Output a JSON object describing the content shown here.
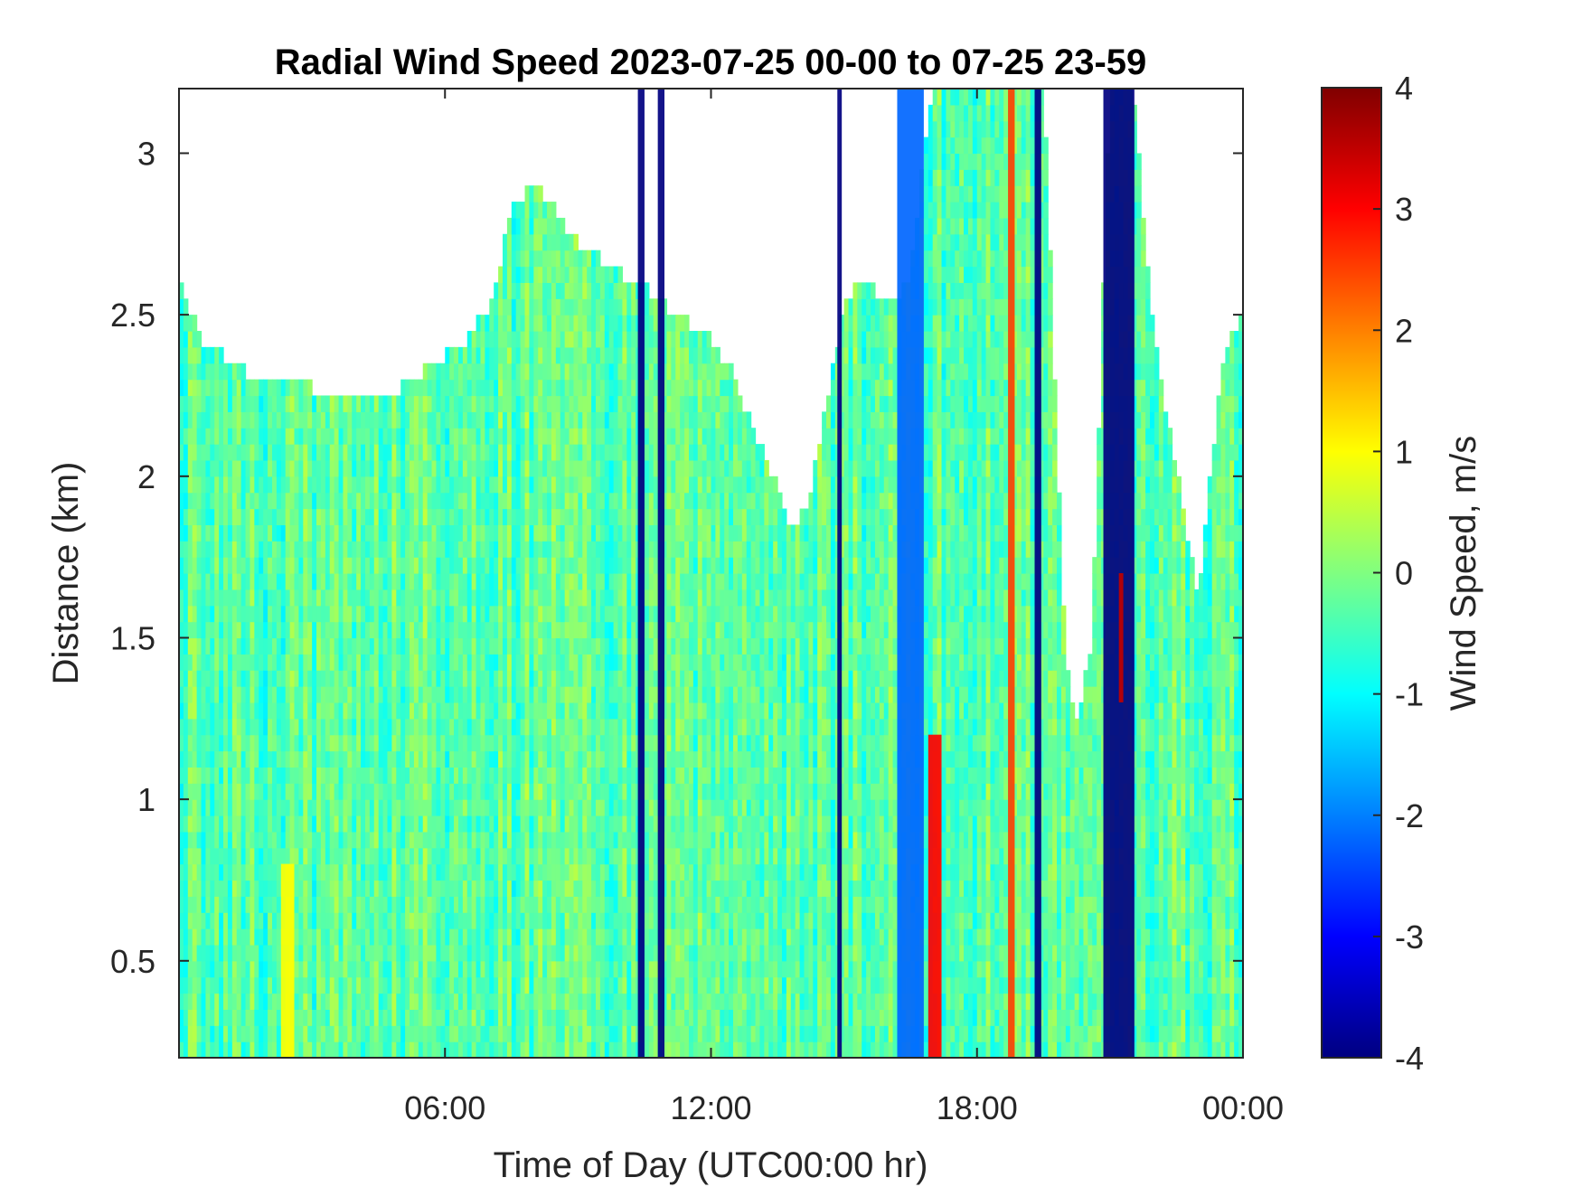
{
  "chart_data": {
    "type": "heatmap",
    "title": "Radial Wind Speed 2023-07-25 00-00 to 07-25 23-59",
    "xlabel": "Time of Day (UTC00:00 hr)",
    "ylabel": "Distance (km)",
    "colorbar_label": "Wind Speed, m/s",
    "colormap": "jet",
    "xlim_hours": [
      0,
      24
    ],
    "ylim": [
      0.2,
      3.2
    ],
    "clim": [
      -4,
      4
    ],
    "x_ticks": [
      {
        "hour": 6,
        "label": "06:00"
      },
      {
        "hour": 12,
        "label": "12:00"
      },
      {
        "hour": 18,
        "label": "18:00"
      },
      {
        "hour": 24,
        "label": "00:00"
      }
    ],
    "y_ticks": [
      {
        "value": 0.5,
        "label": "0.5"
      },
      {
        "value": 1,
        "label": "1"
      },
      {
        "value": 1.5,
        "label": "1.5"
      },
      {
        "value": 2,
        "label": "2"
      },
      {
        "value": 2.5,
        "label": "2.5"
      },
      {
        "value": 3,
        "label": "3"
      }
    ],
    "colorbar_ticks": [
      {
        "value": -4,
        "label": "-4"
      },
      {
        "value": -3,
        "label": "-3"
      },
      {
        "value": -2,
        "label": "-2"
      },
      {
        "value": -1,
        "label": "-1"
      },
      {
        "value": 0,
        "label": "0"
      },
      {
        "value": 1,
        "label": "1"
      },
      {
        "value": 2,
        "label": "2"
      },
      {
        "value": 3,
        "label": "3"
      },
      {
        "value": 4,
        "label": "4"
      }
    ],
    "data_top_km": [
      [
        0.0,
        2.6
      ],
      [
        0.5,
        2.4
      ],
      [
        1.0,
        2.35
      ],
      [
        1.5,
        2.3
      ],
      [
        2.0,
        2.25
      ],
      [
        2.5,
        2.3
      ],
      [
        3.0,
        2.25
      ],
      [
        3.5,
        2.2
      ],
      [
        4.0,
        2.25
      ],
      [
        4.5,
        2.2
      ],
      [
        5.0,
        2.25
      ],
      [
        5.5,
        2.3
      ],
      [
        6.0,
        2.35
      ],
      [
        6.5,
        2.4
      ],
      [
        7.0,
        2.5
      ],
      [
        7.5,
        2.8
      ],
      [
        8.0,
        2.9
      ],
      [
        8.5,
        2.8
      ],
      [
        9.0,
        2.7
      ],
      [
        9.5,
        2.65
      ],
      [
        10.0,
        2.6
      ],
      [
        10.3,
        2.6
      ],
      [
        11.0,
        2.5
      ],
      [
        11.5,
        2.45
      ],
      [
        12.0,
        2.4
      ],
      [
        12.5,
        2.3
      ],
      [
        13.0,
        2.1
      ],
      [
        13.5,
        1.95
      ],
      [
        13.8,
        1.8
      ],
      [
        14.2,
        1.9
      ],
      [
        14.6,
        2.2
      ],
      [
        15.0,
        2.5
      ],
      [
        15.5,
        2.6
      ],
      [
        16.0,
        2.5
      ],
      [
        16.5,
        2.6
      ],
      [
        17.0,
        3.2
      ],
      [
        19.5,
        3.2
      ],
      [
        20.0,
        1.4
      ],
      [
        20.3,
        1.2
      ],
      [
        20.6,
        1.5
      ],
      [
        21.0,
        3.2
      ],
      [
        21.5,
        3.2
      ],
      [
        22.0,
        2.4
      ],
      [
        22.5,
        2.0
      ],
      [
        23.0,
        1.6
      ],
      [
        23.5,
        2.3
      ],
      [
        24.0,
        2.5
      ]
    ],
    "dominant_value": -0.3,
    "features": [
      {
        "type": "band",
        "hour_start": 10.35,
        "hour_end": 10.5,
        "value": -4
      },
      {
        "type": "band",
        "hour_start": 10.8,
        "hour_end": 10.95,
        "value": -4
      },
      {
        "type": "band",
        "hour_start": 14.85,
        "hour_end": 14.95,
        "value": -4
      },
      {
        "type": "band",
        "hour_start": 20.85,
        "hour_end": 21.55,
        "value": -4
      },
      {
        "type": "band",
        "hour_start": 19.3,
        "hour_end": 19.45,
        "value": -4
      },
      {
        "type": "band",
        "hour_start": 16.9,
        "hour_end": 17.2,
        "value": 3,
        "dist_max": 1.2
      },
      {
        "type": "band",
        "hour_start": 18.7,
        "hour_end": 18.85,
        "value": 2.5
      },
      {
        "type": "band",
        "hour_start": 21.2,
        "hour_end": 21.3,
        "value": 3.5,
        "dist_min": 1.3,
        "dist_max": 1.7
      },
      {
        "type": "band",
        "hour_start": 2.3,
        "hour_end": 2.6,
        "value": 1.0,
        "dist_max": 0.8
      },
      {
        "type": "band",
        "hour_start": 16.2,
        "hour_end": 16.8,
        "value": -2.2
      }
    ]
  }
}
